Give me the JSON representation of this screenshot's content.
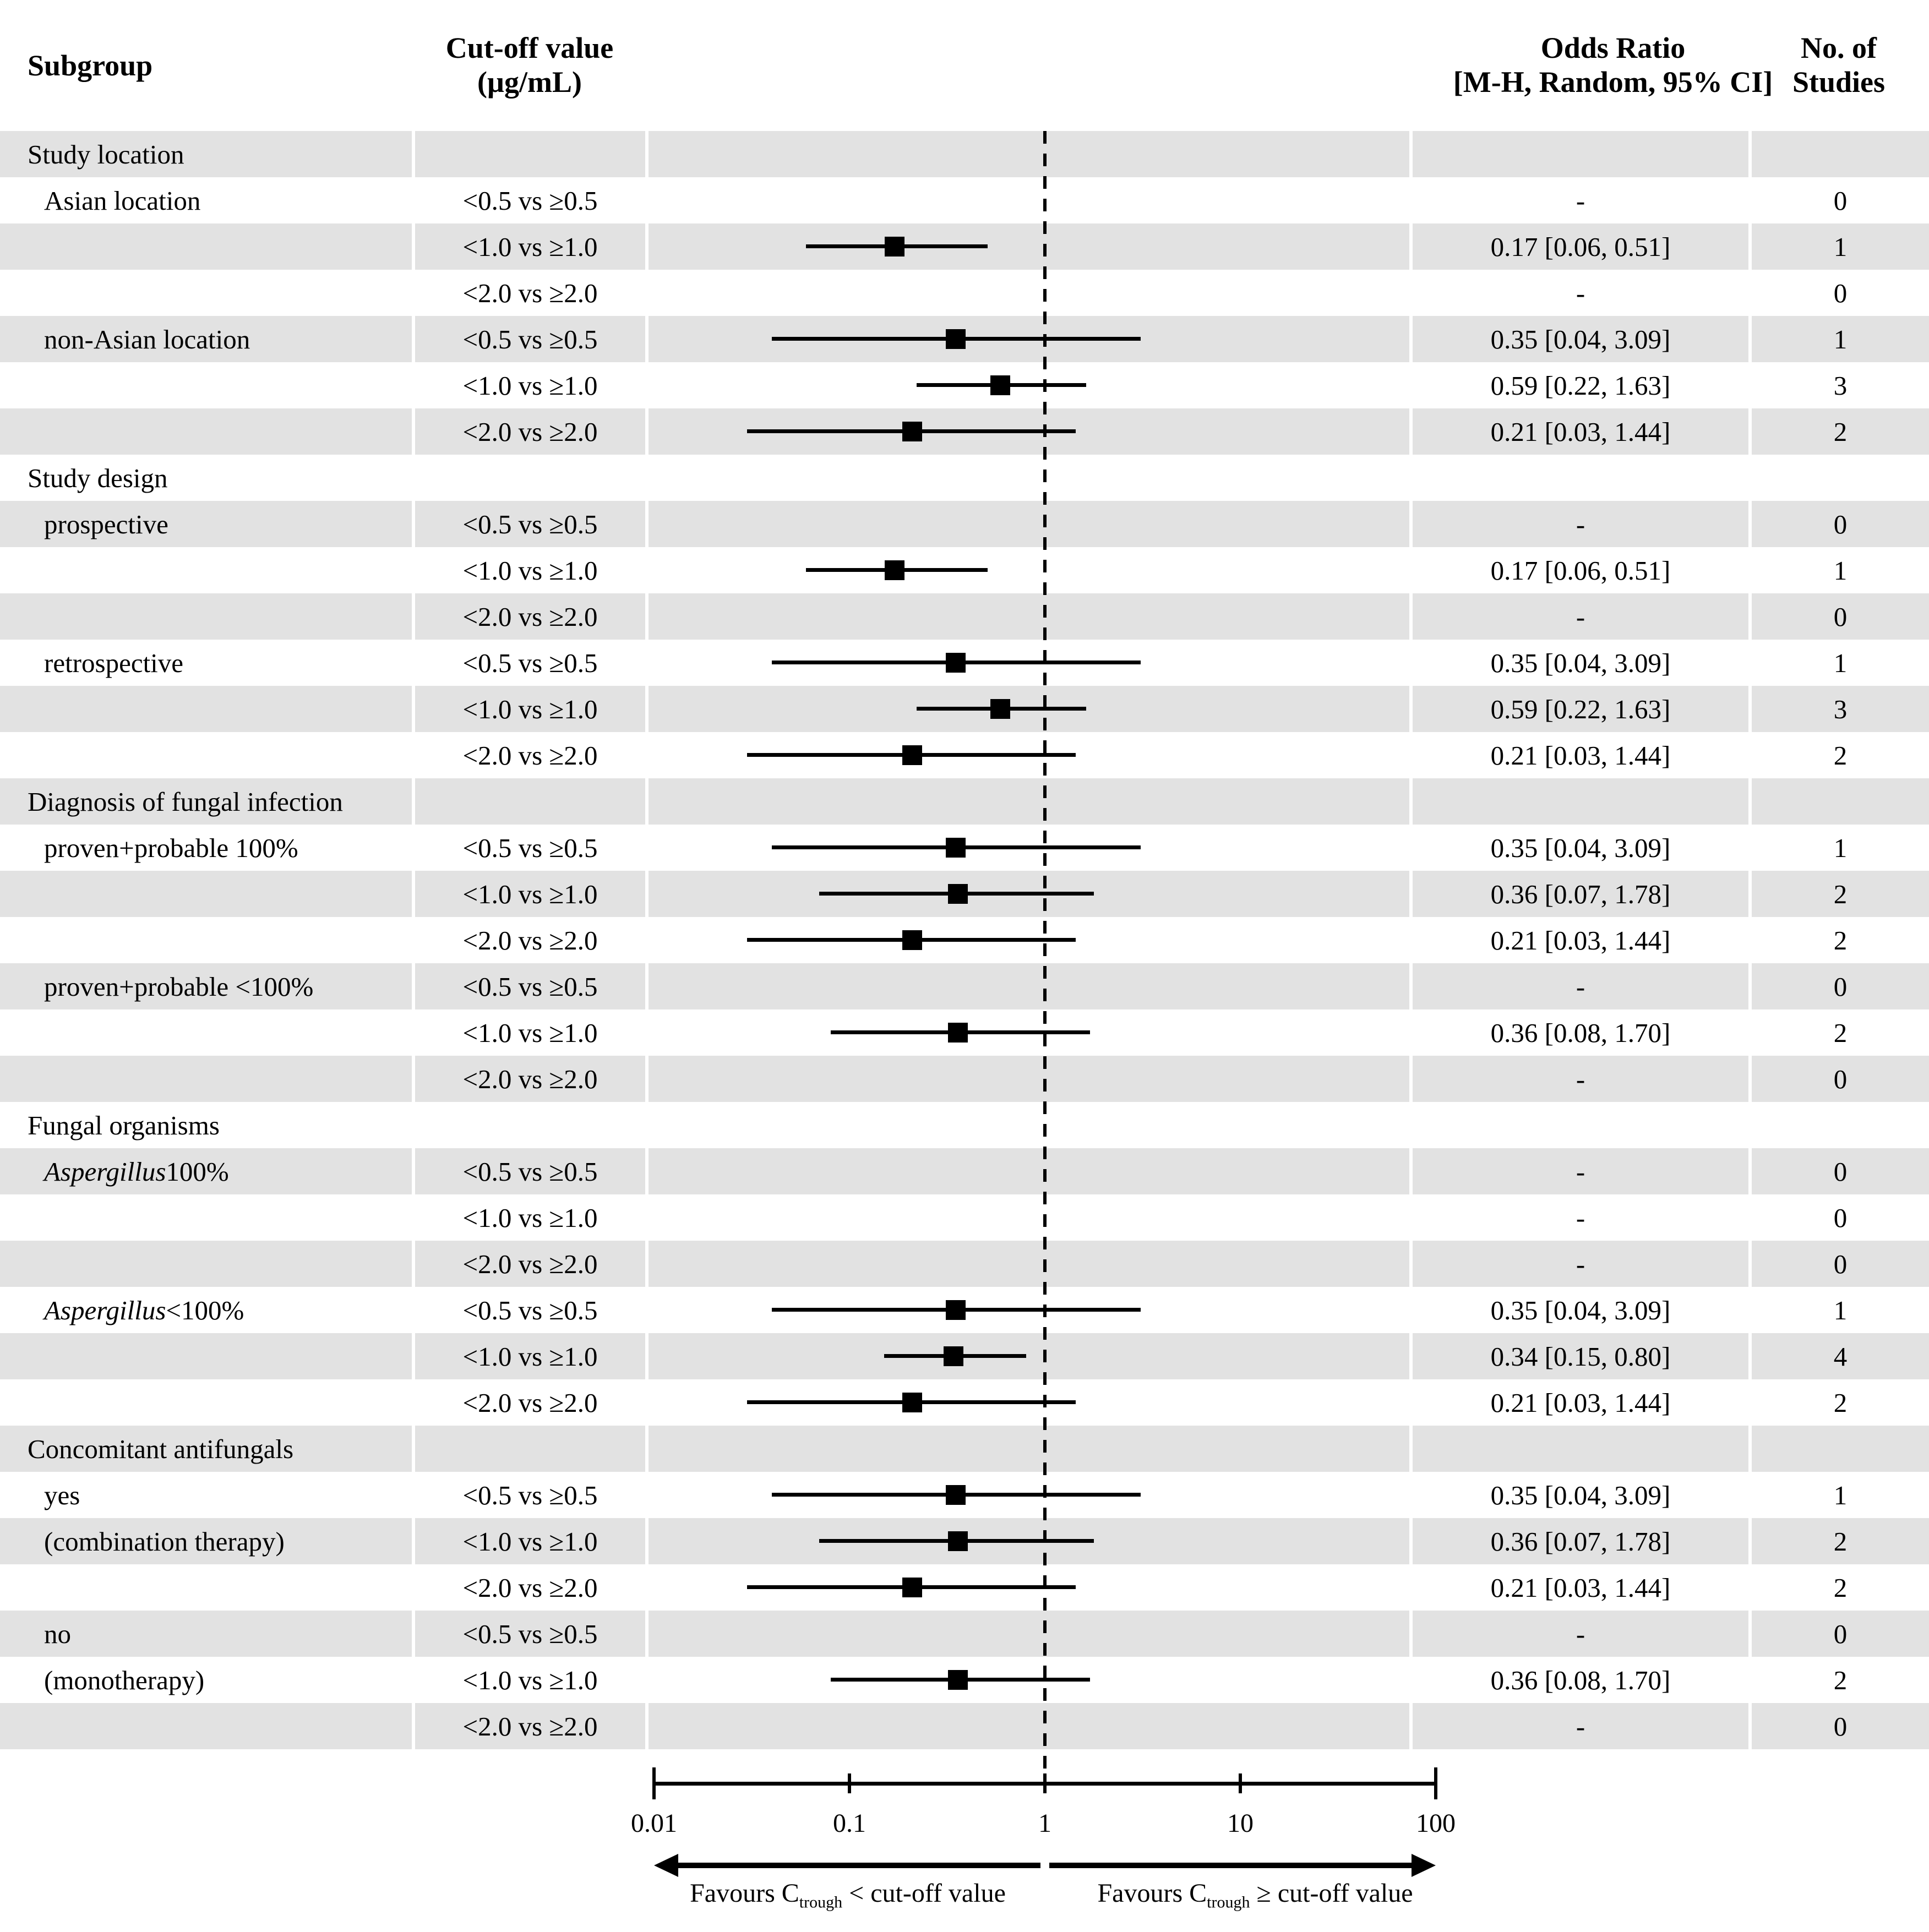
{
  "header": {
    "subgroup": "Subgroup",
    "cutoff_line1": "Cut-off value",
    "cutoff_line2": "(µg/mL)",
    "or_line1": "Odds Ratio",
    "or_line2": "[M-H, Random, 95% CI]",
    "n_line1": "No. of",
    "n_line2": "Studies"
  },
  "colors": {
    "band": "#e2e2e2",
    "ink": "#000000"
  },
  "chart_data": {
    "type": "scatter",
    "subtype": "forest-plot",
    "xscale": "log",
    "xlim": [
      0.01,
      100
    ],
    "xticks": [
      "0.01",
      "0.1",
      "1",
      "10",
      "100"
    ],
    "reference_line": 1,
    "grid": false,
    "favours_left": {
      "pre": "Favours C",
      "sub": "trough",
      "post": " < cut-off value"
    },
    "favours_right": {
      "pre": "Favours C",
      "sub": "trough",
      "post": " ≥ cut-off value"
    },
    "sections": [
      {
        "title": "Study location",
        "rows": [
          {
            "label": "Asian location",
            "cutoff": "<0.5 vs ≥0.5",
            "or": "-",
            "n": "0",
            "est": null,
            "lo": null,
            "hi": null
          },
          {
            "label": "",
            "cutoff": "<1.0 vs ≥1.0",
            "or": "0.17 [0.06, 0.51]",
            "n": "1",
            "est": 0.17,
            "lo": 0.06,
            "hi": 0.51
          },
          {
            "label": "",
            "cutoff": "<2.0 vs ≥2.0",
            "or": "-",
            "n": "0",
            "est": null,
            "lo": null,
            "hi": null
          },
          {
            "label": "non-Asian location",
            "cutoff": "<0.5 vs ≥0.5",
            "or": "0.35 [0.04, 3.09]",
            "n": "1",
            "est": 0.35,
            "lo": 0.04,
            "hi": 3.09
          },
          {
            "label": "",
            "cutoff": "<1.0 vs ≥1.0",
            "or": "0.59 [0.22, 1.63]",
            "n": "3",
            "est": 0.59,
            "lo": 0.22,
            "hi": 1.63
          },
          {
            "label": "",
            "cutoff": "<2.0 vs ≥2.0",
            "or": "0.21 [0.03, 1.44]",
            "n": "2",
            "est": 0.21,
            "lo": 0.03,
            "hi": 1.44
          }
        ]
      },
      {
        "title": "Study design",
        "rows": [
          {
            "label": "prospective",
            "cutoff": "<0.5 vs ≥0.5",
            "or": "-",
            "n": "0",
            "est": null,
            "lo": null,
            "hi": null
          },
          {
            "label": "",
            "cutoff": "<1.0 vs ≥1.0",
            "or": "0.17 [0.06, 0.51]",
            "n": "1",
            "est": 0.17,
            "lo": 0.06,
            "hi": 0.51
          },
          {
            "label": "",
            "cutoff": "<2.0 vs ≥2.0",
            "or": "-",
            "n": "0",
            "est": null,
            "lo": null,
            "hi": null
          },
          {
            "label": "retrospective",
            "cutoff": "<0.5 vs ≥0.5",
            "or": "0.35 [0.04, 3.09]",
            "n": "1",
            "est": 0.35,
            "lo": 0.04,
            "hi": 3.09
          },
          {
            "label": "",
            "cutoff": "<1.0 vs ≥1.0",
            "or": "0.59 [0.22, 1.63]",
            "n": "3",
            "est": 0.59,
            "lo": 0.22,
            "hi": 1.63
          },
          {
            "label": "",
            "cutoff": "<2.0 vs ≥2.0",
            "or": "0.21 [0.03, 1.44]",
            "n": "2",
            "est": 0.21,
            "lo": 0.03,
            "hi": 1.44
          }
        ]
      },
      {
        "title": "Diagnosis of fungal infection",
        "rows": [
          {
            "label": "proven+probable 100%",
            "cutoff": "<0.5 vs ≥0.5",
            "or": "0.35 [0.04, 3.09]",
            "n": "1",
            "est": 0.35,
            "lo": 0.04,
            "hi": 3.09
          },
          {
            "label": "",
            "cutoff": "<1.0 vs ≥1.0",
            "or": "0.36 [0.07, 1.78]",
            "n": "2",
            "est": 0.36,
            "lo": 0.07,
            "hi": 1.78
          },
          {
            "label": "",
            "cutoff": "<2.0 vs ≥2.0",
            "or": "0.21 [0.03, 1.44]",
            "n": "2",
            "est": 0.21,
            "lo": 0.03,
            "hi": 1.44
          },
          {
            "label": "proven+probable <100%",
            "cutoff": "<0.5 vs ≥0.5",
            "or": "-",
            "n": "0",
            "est": null,
            "lo": null,
            "hi": null
          },
          {
            "label": "",
            "cutoff": "<1.0 vs ≥1.0",
            "or": "0.36 [0.08, 1.70]",
            "n": "2",
            "est": 0.36,
            "lo": 0.08,
            "hi": 1.7
          },
          {
            "label": "",
            "cutoff": "<2.0 vs ≥2.0",
            "or": "-",
            "n": "0",
            "est": null,
            "lo": null,
            "hi": null
          }
        ]
      },
      {
        "title": "Fungal organisms",
        "rows": [
          {
            "label_italic": "Aspergillus",
            "label": " 100%",
            "cutoff": "<0.5 vs ≥0.5",
            "or": "-",
            "n": "0",
            "est": null,
            "lo": null,
            "hi": null
          },
          {
            "label": "",
            "cutoff": "<1.0 vs ≥1.0",
            "or": "-",
            "n": "0",
            "est": null,
            "lo": null,
            "hi": null
          },
          {
            "label": "",
            "cutoff": "<2.0 vs ≥2.0",
            "or": "-",
            "n": "0",
            "est": null,
            "lo": null,
            "hi": null
          },
          {
            "label_italic": "Aspergillus",
            "label": " <100%",
            "cutoff": "<0.5 vs ≥0.5",
            "or": "0.35 [0.04, 3.09]",
            "n": "1",
            "est": 0.35,
            "lo": 0.04,
            "hi": 3.09
          },
          {
            "label": "",
            "cutoff": "<1.0 vs ≥1.0",
            "or": "0.34 [0.15, 0.80]",
            "n": "4",
            "est": 0.34,
            "lo": 0.15,
            "hi": 0.8
          },
          {
            "label": "",
            "cutoff": "<2.0 vs ≥2.0",
            "or": "0.21 [0.03, 1.44]",
            "n": "2",
            "est": 0.21,
            "lo": 0.03,
            "hi": 1.44
          }
        ]
      },
      {
        "title": "Concomitant antifungals",
        "rows": [
          {
            "label": "yes",
            "cutoff": "<0.5 vs ≥0.5",
            "or": "0.35 [0.04, 3.09]",
            "n": "1",
            "est": 0.35,
            "lo": 0.04,
            "hi": 3.09
          },
          {
            "label": "(combination therapy)",
            "cutoff": "<1.0 vs ≥1.0",
            "or": "0.36 [0.07, 1.78]",
            "n": "2",
            "est": 0.36,
            "lo": 0.07,
            "hi": 1.78
          },
          {
            "label": "",
            "cutoff": "<2.0 vs ≥2.0",
            "or": "0.21 [0.03, 1.44]",
            "n": "2",
            "est": 0.21,
            "lo": 0.03,
            "hi": 1.44
          },
          {
            "label": "no",
            "cutoff": "<0.5 vs ≥0.5",
            "or": "-",
            "n": "0",
            "est": null,
            "lo": null,
            "hi": null
          },
          {
            "label": "(monotherapy)",
            "cutoff": "<1.0 vs ≥1.0",
            "or": "0.36 [0.08, 1.70]",
            "n": "2",
            "est": 0.36,
            "lo": 0.08,
            "hi": 1.7
          },
          {
            "label": "",
            "cutoff": "<2.0 vs ≥2.0",
            "or": "-",
            "n": "0",
            "est": null,
            "lo": null,
            "hi": null
          }
        ]
      }
    ]
  }
}
